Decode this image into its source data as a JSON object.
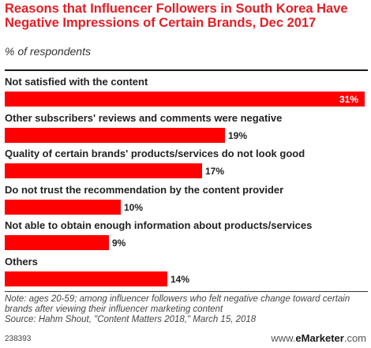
{
  "chart_data": {
    "type": "bar",
    "orientation": "horizontal",
    "title": "Reasons that Influencer Followers in South Korea Have Negative Impressions of Certain Brands, Dec 2017",
    "subtitle": "% of respondents",
    "categories": [
      "Not satisfied with the content",
      "Other subscribers' reviews and comments were negative",
      "Quality of certain brands' products/services do not look good",
      "Do not trust the recommendation by the content provider",
      "Not able to obtain enough information about products/services",
      "Others"
    ],
    "values": [
      31,
      19,
      17,
      10,
      9,
      14
    ],
    "value_labels": [
      "31%",
      "19%",
      "17%",
      "10%",
      "9%",
      "14%"
    ],
    "bar_color": "#ff0000",
    "xlim": [
      0,
      31
    ],
    "grid": false,
    "legend": "none"
  },
  "note": "Note: ages 20-59; among influencer followers who felt negative change toward certain brands after viewing their influencer marketing content",
  "source": "Source: Hahm Shout, \"Content Matters 2018,\" March 15, 2018",
  "footer": {
    "chart_id": "238393",
    "brand_prefix": "www.",
    "brand_name": "eMarketer",
    "brand_suffix": ".com"
  },
  "colors": {
    "title": "#e31e24",
    "bar": "#ff0000"
  }
}
